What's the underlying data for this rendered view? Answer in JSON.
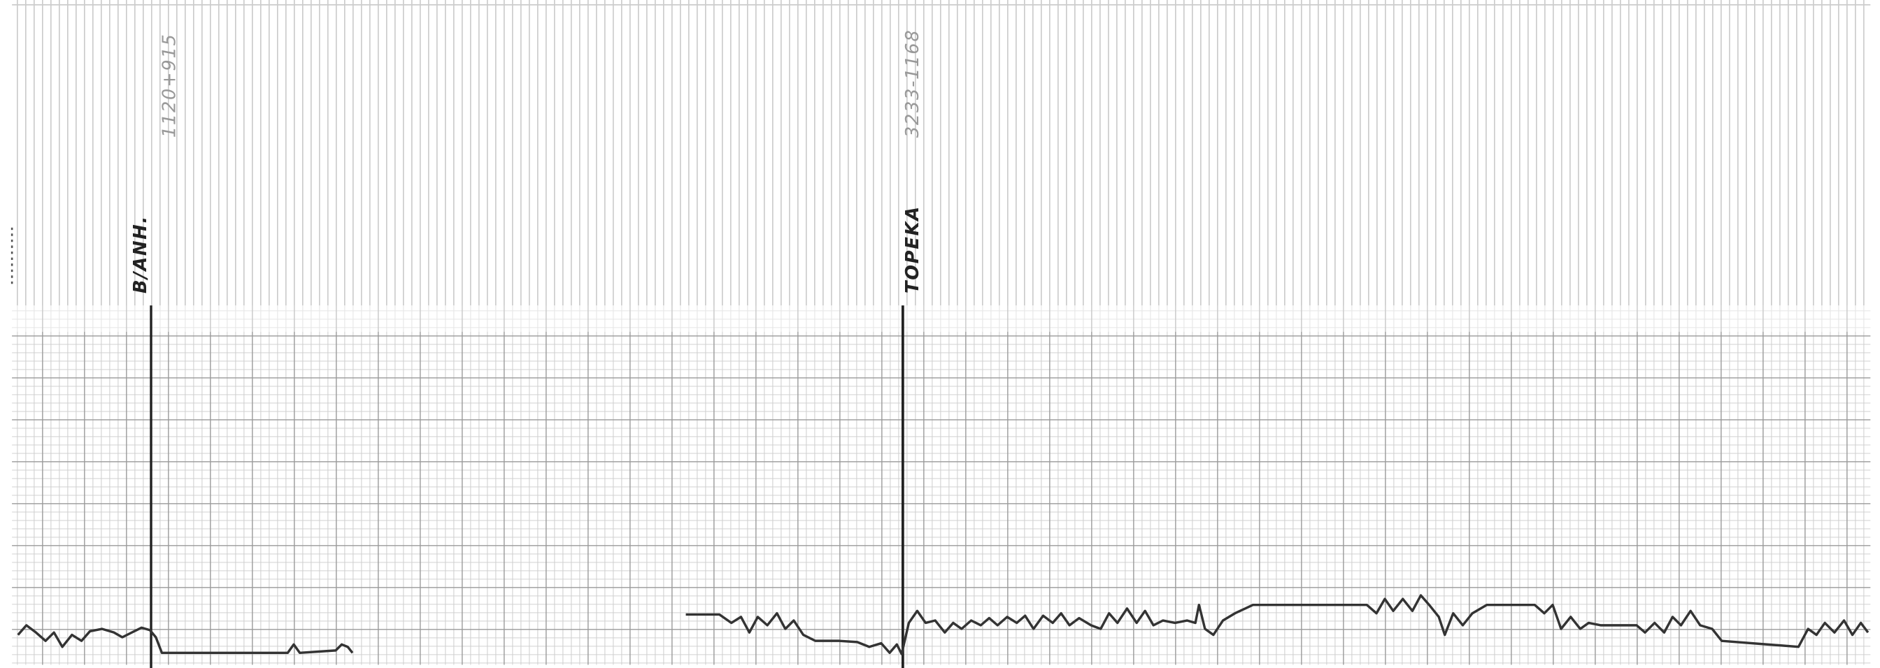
{
  "markers": [
    {
      "station": "B/ANH.",
      "note": "1120+915"
    },
    {
      "station": "TOPEKA",
      "note": "3233-1168"
    }
  ]
}
